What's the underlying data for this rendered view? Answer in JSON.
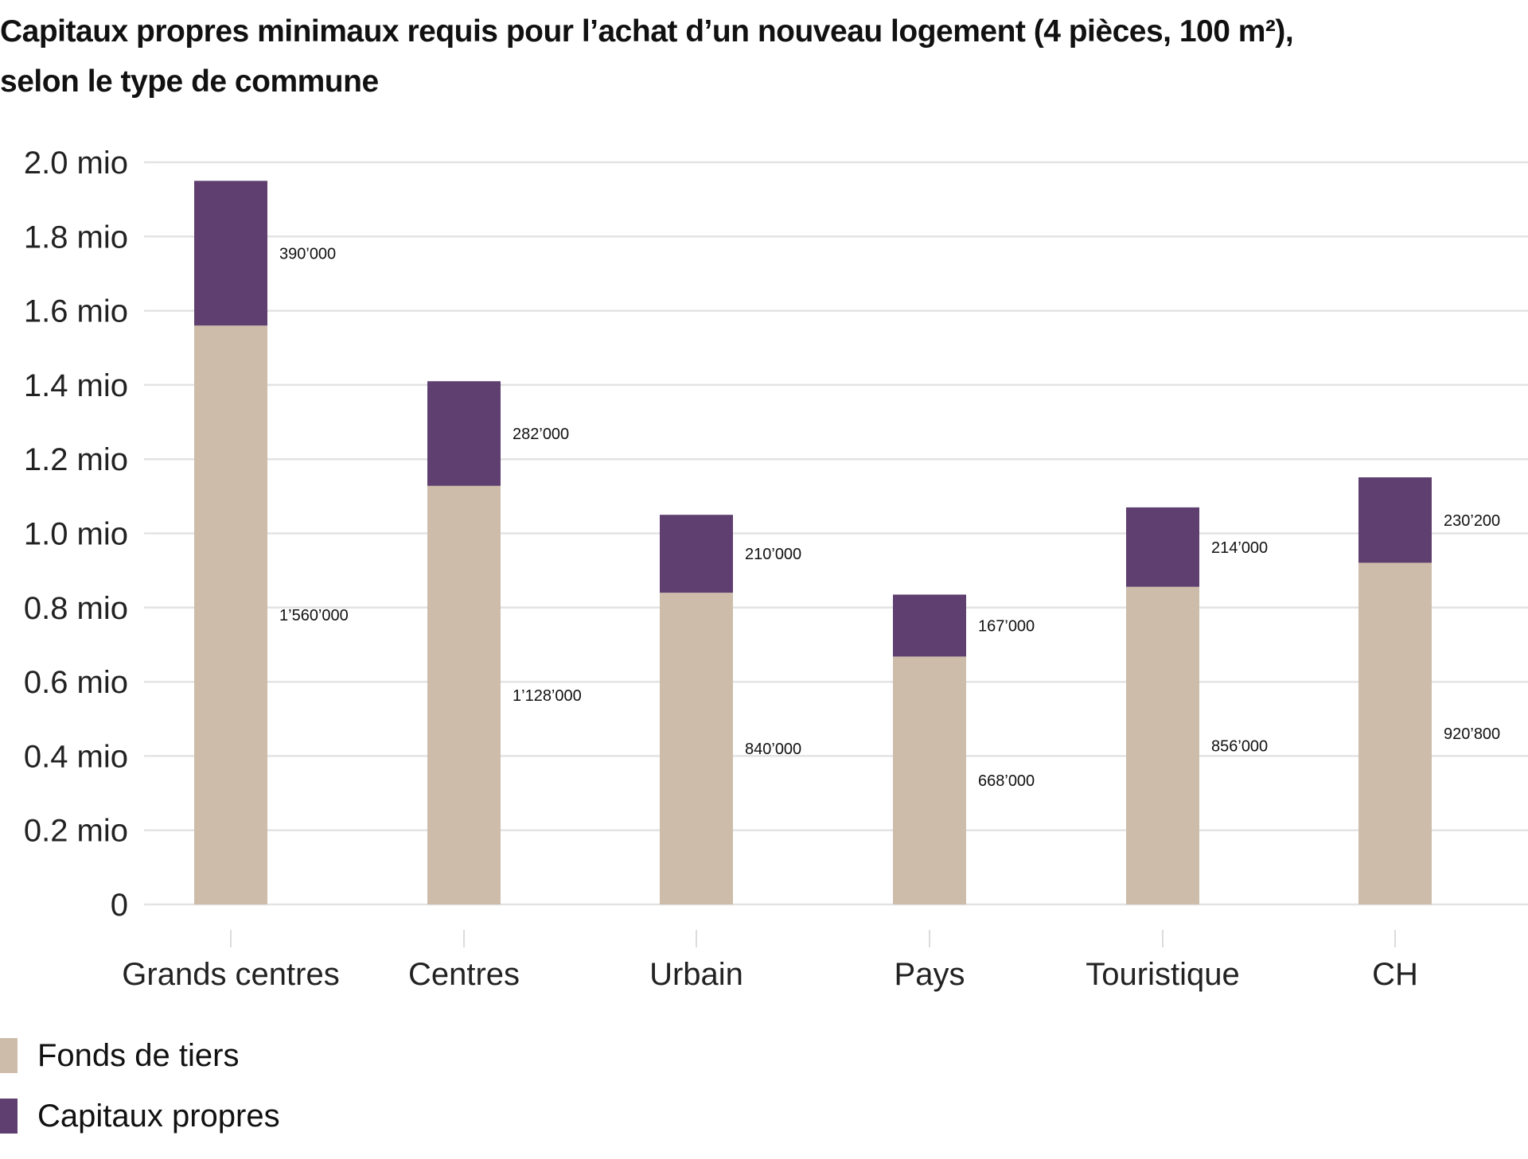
{
  "chart_data": {
    "type": "bar",
    "stacked": true,
    "title": "Capitaux propres minimaux requis pour l’achat d’un nouveau logement (4 pièces, 100 m²), selon le type de commune",
    "title_lines": [
      "Capitaux propres minimaux requis pour l’achat d’un nouveau logement (4 pièces, 100 m²),",
      "selon le type de commune"
    ],
    "categories": [
      "Grands centres",
      "Centres",
      "Urbain",
      "Pays",
      "Touristique",
      "CH"
    ],
    "series": [
      {
        "name": "Fonds de tiers",
        "color": "#cdbcaa",
        "values": [
          1560000,
          1128000,
          840000,
          668000,
          856000,
          920800
        ],
        "labels": [
          "1’560’000",
          "1’128’000",
          "840’000",
          "668’000",
          "856’000",
          "920’800"
        ]
      },
      {
        "name": "Capitaux propres",
        "color": "#5f3f6f",
        "values": [
          390000,
          282000,
          210000,
          167000,
          214000,
          230200
        ],
        "labels": [
          "390’000",
          "282’000",
          "210’000",
          "167’000",
          "214’000",
          "230’200"
        ]
      }
    ],
    "ylim": [
      0,
      2000000
    ],
    "yticks": [
      0,
      200000,
      400000,
      600000,
      800000,
      1000000,
      1200000,
      1400000,
      1600000,
      1800000,
      2000000
    ],
    "ytick_labels": [
      "0",
      "0.2 mio",
      "0.4 mio",
      "0.6 mio",
      "0.8 mio",
      "1.0 mio",
      "1.2 mio",
      "1.4 mio",
      "1.6 mio",
      "1.8 mio",
      "2.0 mio"
    ],
    "xlabel": "",
    "ylabel": "",
    "grid": true,
    "legend_position": "bottom-left"
  }
}
